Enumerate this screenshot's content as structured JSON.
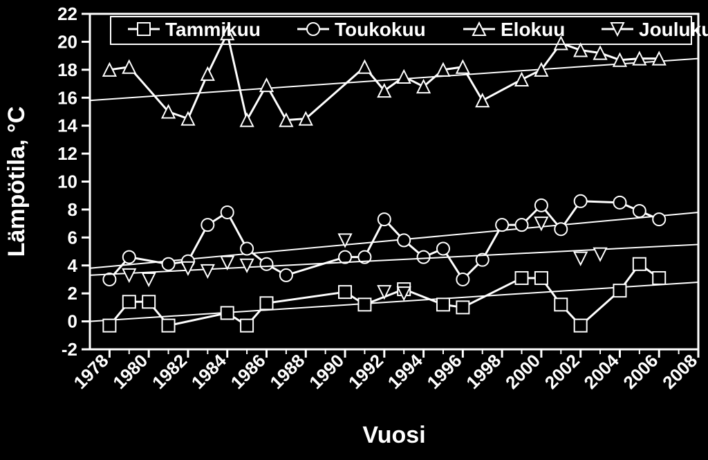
{
  "chart": {
    "type": "line-scatter",
    "background_color": "#000000",
    "stroke_color": "#ffffff",
    "text_color": "#ffffff",
    "title_fontsize": 16,
    "xlabel": "Vuosi",
    "xlabel_fontsize": 34,
    "ylabel": "Lämpötila, °C",
    "ylabel_fontsize": 34,
    "tick_fontsize": 26,
    "legend_fontsize": 28,
    "xlim": [
      1977,
      2008
    ],
    "ylim": [
      -2,
      22
    ],
    "xtick_step": 2,
    "ytick_step": 2,
    "x_minor_step": 1,
    "axis_line_width": 3,
    "series_line_width": 3,
    "trend_line_width": 2,
    "marker_size": 9,
    "marker_line_width": 2,
    "xticks_rotate": -45,
    "legend": {
      "items": [
        {
          "label": "Tammikuu",
          "marker": "square"
        },
        {
          "label": "Toukokuu",
          "marker": "circle"
        },
        {
          "label": "Elokuu",
          "marker": "triangle-up"
        },
        {
          "label": "Joulukuu",
          "marker": "triangle-down"
        }
      ]
    },
    "series": [
      {
        "name": "Tammikuu",
        "marker": "square",
        "connected": true,
        "points": [
          [
            1978,
            -0.3
          ],
          [
            1979,
            1.4
          ],
          [
            1980,
            1.4
          ],
          [
            1981,
            -0.3
          ],
          [
            1984,
            0.6
          ],
          [
            1985,
            -0.3
          ],
          [
            1986,
            1.3
          ],
          [
            1990,
            2.1
          ],
          [
            1991,
            1.2
          ],
          [
            1993,
            2.3
          ],
          [
            1995,
            1.2
          ],
          [
            1996,
            1.0
          ],
          [
            1999,
            3.1
          ],
          [
            2000,
            3.1
          ],
          [
            2001,
            1.2
          ],
          [
            2002,
            -0.3
          ],
          [
            2004,
            2.2
          ],
          [
            2005,
            4.1
          ],
          [
            2006,
            3.1
          ]
        ],
        "trend": {
          "x1": 1977,
          "y1": 0.0,
          "x2": 2008,
          "y2": 2.8
        }
      },
      {
        "name": "Toukokuu",
        "marker": "circle",
        "connected": true,
        "points": [
          [
            1978,
            3.0
          ],
          [
            1979,
            4.6
          ],
          [
            1981,
            4.1
          ],
          [
            1982,
            4.3
          ],
          [
            1983,
            6.9
          ],
          [
            1984,
            7.8
          ],
          [
            1985,
            5.2
          ],
          [
            1986,
            4.1
          ],
          [
            1987,
            3.3
          ],
          [
            1990,
            4.6
          ],
          [
            1991,
            4.6
          ],
          [
            1992,
            7.3
          ],
          [
            1993,
            5.8
          ],
          [
            1994,
            4.6
          ],
          [
            1995,
            5.2
          ],
          [
            1996,
            3.0
          ],
          [
            1997,
            4.4
          ],
          [
            1998,
            6.9
          ],
          [
            1999,
            6.9
          ],
          [
            2000,
            8.3
          ],
          [
            2001,
            6.6
          ],
          [
            2002,
            8.6
          ],
          [
            2004,
            8.5
          ],
          [
            2005,
            7.9
          ],
          [
            2006,
            7.3
          ]
        ],
        "trend": {
          "x1": 1977,
          "y1": 3.8,
          "x2": 2008,
          "y2": 7.8
        }
      },
      {
        "name": "Elokuu",
        "marker": "triangle-up",
        "connected": true,
        "points": [
          [
            1978,
            18.0
          ],
          [
            1979,
            18.2
          ],
          [
            1981,
            15.0
          ],
          [
            1982,
            14.5
          ],
          [
            1983,
            17.7
          ],
          [
            1984,
            20.6
          ],
          [
            1985,
            14.4
          ],
          [
            1986,
            16.9
          ],
          [
            1987,
            14.4
          ],
          [
            1988,
            14.5
          ],
          [
            1991,
            18.2
          ],
          [
            1992,
            16.5
          ],
          [
            1993,
            17.5
          ],
          [
            1994,
            16.8
          ],
          [
            1995,
            18.0
          ],
          [
            1996,
            18.2
          ],
          [
            1997,
            15.8
          ],
          [
            1999,
            17.3
          ],
          [
            2000,
            18.0
          ],
          [
            2001,
            19.9
          ],
          [
            2002,
            19.4
          ],
          [
            2003,
            19.2
          ],
          [
            2004,
            18.7
          ],
          [
            2005,
            18.8
          ],
          [
            2006,
            18.8
          ]
        ],
        "trend": {
          "x1": 1977,
          "y1": 15.8,
          "x2": 2008,
          "y2": 18.8
        }
      },
      {
        "name": "Joulukuu",
        "marker": "triangle-down",
        "connected": false,
        "points": [
          [
            1979,
            3.3
          ],
          [
            1980,
            3.0
          ],
          [
            1982,
            3.8
          ],
          [
            1983,
            3.6
          ],
          [
            1984,
            4.2
          ],
          [
            1985,
            4.0
          ],
          [
            1990,
            5.8
          ],
          [
            1992,
            2.1
          ],
          [
            1993,
            2.0
          ],
          [
            2000,
            7.0
          ],
          [
            2002,
            4.5
          ],
          [
            2003,
            4.8
          ]
        ],
        "trend": {
          "x1": 1977,
          "y1": 3.3,
          "x2": 2008,
          "y2": 5.5
        }
      }
    ]
  }
}
